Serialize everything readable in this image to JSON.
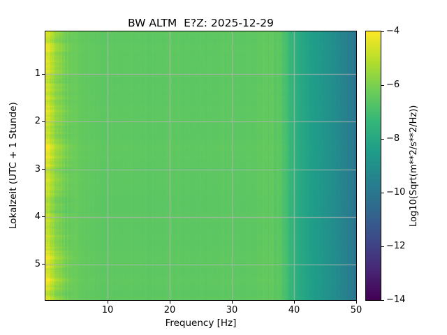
{
  "figure": {
    "title": "BW ALTM  E?Z: 2025-12-29",
    "xlabel": "Frequency [Hz]",
    "ylabel": "Lokalzeit (UTC + 1 Stunde)",
    "background": "#ffffff"
  },
  "colorbar": {
    "label": "Log10(Sqrt(m**2/s**2/Hz))",
    "ticks": [
      -4,
      -6,
      -8,
      -10,
      -12,
      -14
    ],
    "vmax": -4,
    "vmin": -14,
    "colormap": "viridis",
    "colormap_stops": [
      "#440154",
      "#482777",
      "#3e4a89",
      "#31688e",
      "#26828e",
      "#1f9e89",
      "#35b779",
      "#6dcd59",
      "#b4de2c",
      "#fde725"
    ]
  },
  "chart_data": {
    "type": "heatmap",
    "title": "BW ALTM  E?Z: 2025-12-29",
    "xlabel": "Frequency [Hz]",
    "ylabel": "Lokalzeit (UTC + 1 Stunde)",
    "colorbar_label": "Log10(Sqrt(m**2/s**2/Hz))",
    "xlim": [
      0,
      50
    ],
    "ylim": [
      0.1,
      5.75
    ],
    "x_ticks": [
      10,
      20,
      30,
      40,
      50
    ],
    "y_ticks": [
      1,
      2,
      3,
      4,
      5
    ],
    "value_range": [
      -14,
      -4
    ],
    "grid": true,
    "frequency_profile": [
      {
        "f": 0.0,
        "v": -4.3
      },
      {
        "f": 0.4,
        "v": -4.6
      },
      {
        "f": 0.9,
        "v": -5.0
      },
      {
        "f": 1.6,
        "v": -5.5
      },
      {
        "f": 2.5,
        "v": -5.9
      },
      {
        "f": 4.0,
        "v": -6.2
      },
      {
        "f": 6.0,
        "v": -6.4
      },
      {
        "f": 10.0,
        "v": -6.5
      },
      {
        "f": 20.0,
        "v": -6.5
      },
      {
        "f": 30.0,
        "v": -6.5
      },
      {
        "f": 34.0,
        "v": -6.5
      },
      {
        "f": 36.0,
        "v": -6.4
      },
      {
        "f": 37.5,
        "v": -6.5
      },
      {
        "f": 38.5,
        "v": -6.9
      },
      {
        "f": 39.5,
        "v": -7.3
      },
      {
        "f": 41.0,
        "v": -7.9
      },
      {
        "f": 43.0,
        "v": -8.4
      },
      {
        "f": 45.0,
        "v": -8.8
      },
      {
        "f": 47.0,
        "v": -9.2
      },
      {
        "f": 48.5,
        "v": -9.6
      },
      {
        "f": 50.0,
        "v": -10.1
      }
    ],
    "description": "Daily seismic spectrogram: high amplitude (about -4.5, yellow) below ~2 Hz with time-varying horizontal streaks, flat green plateau (about -6.5) from ~4 to ~37 Hz, rolling off through teal to about -10 (blue) near 50 Hz; pattern is nearly uniform over the ~0.1-5.75 h time span."
  }
}
